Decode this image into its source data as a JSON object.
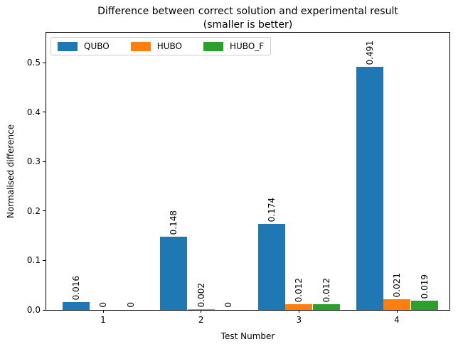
{
  "chart_data": {
    "type": "bar",
    "title": "Difference between correct solution and experimental result\n(smaller is better)",
    "xlabel": "Test Number",
    "ylabel": "Normalised difference",
    "categories": [
      "1",
      "2",
      "3",
      "4"
    ],
    "series": [
      {
        "name": "QUBO",
        "color": "#1f77b4",
        "values": [
          0.016,
          0.148,
          0.174,
          0.491
        ],
        "labels": [
          "0.016",
          "0.148",
          "0.174",
          "0.491"
        ]
      },
      {
        "name": "HUBO",
        "color": "#ff7f0e",
        "values": [
          0,
          0.002,
          0.012,
          0.021
        ],
        "labels": [
          "0",
          "0.002",
          "0.012",
          "0.021"
        ]
      },
      {
        "name": "HUBO_F",
        "color": "#2ca02c",
        "values": [
          0,
          0,
          0.012,
          0.019
        ],
        "labels": [
          "0",
          "0",
          "0.012",
          "0.019"
        ]
      }
    ],
    "yticks": [
      "0.0",
      "0.1",
      "0.2",
      "0.3",
      "0.4",
      "0.5"
    ],
    "ylim": [
      0,
      0.56
    ],
    "grid": false,
    "legend_position": "upper left",
    "annotation_rotation_deg": 90
  }
}
